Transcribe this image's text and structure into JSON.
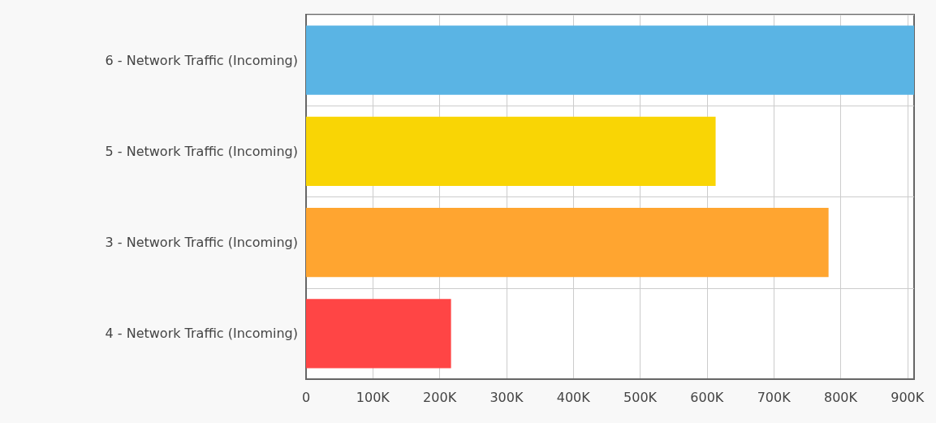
{
  "chart_data": {
    "type": "bar",
    "orientation": "horizontal",
    "categories": [
      "6 - Network Traffic (Incoming)",
      "5 - Network Traffic (Incoming)",
      "3 - Network Traffic (Incoming)",
      "4 - Network Traffic (Incoming)"
    ],
    "values": [
      910000,
      613000,
      782000,
      217000
    ],
    "colors": [
      "#5ab4e4",
      "#f9d505",
      "#ffa530",
      "#ff4545"
    ],
    "xlim": [
      0,
      910000
    ],
    "xticks": [
      0,
      {
        "value": 100000,
        "label": "100K"
      },
      {
        "value": 200000,
        "label": "200K"
      },
      {
        "value": 300000,
        "label": "300K"
      },
      {
        "value": 400000,
        "label": "400K"
      },
      {
        "value": 500000,
        "label": "500K"
      },
      {
        "value": 600000,
        "label": "600K"
      },
      {
        "value": 700000,
        "label": "700K"
      },
      {
        "value": 800000,
        "label": "800K"
      },
      {
        "value": 900000,
        "label": "900K"
      }
    ],
    "grid": true
  }
}
